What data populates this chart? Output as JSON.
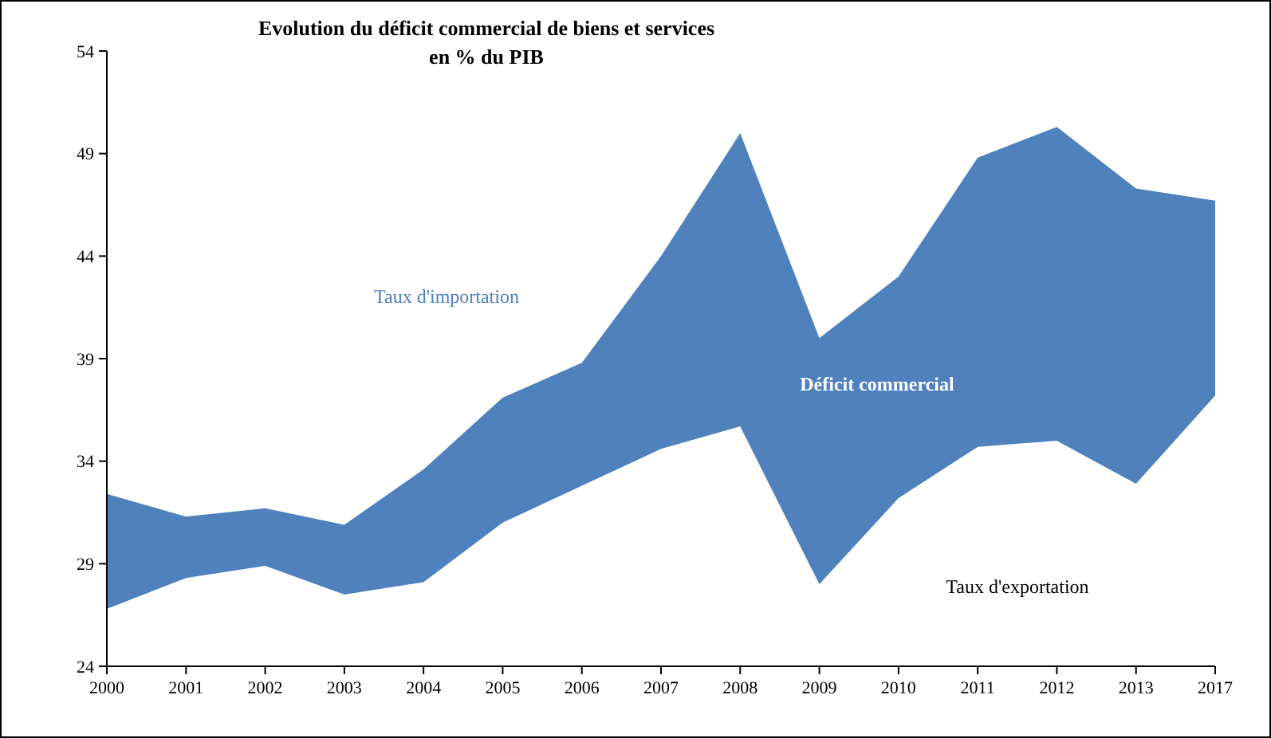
{
  "chart_data": {
    "type": "area",
    "title": "Evolution du déficit commercial de biens et services\nen % du PIB",
    "categories": [
      "2000",
      "2001",
      "2002",
      "2003",
      "2004",
      "2005",
      "2006",
      "2007",
      "2008",
      "2009",
      "2010",
      "2011",
      "2012",
      "2013",
      "2017"
    ],
    "series": [
      {
        "name": "Taux d'importation",
        "color": "#4f81bd",
        "values": [
          32.4,
          31.3,
          31.7,
          30.9,
          33.6,
          37.1,
          38.8,
          44.0,
          50.0,
          40.0,
          43.0,
          48.8,
          50.3,
          47.3,
          46.7
        ]
      },
      {
        "name": "Taux d'exportation",
        "color": "#ffffff",
        "values": [
          26.8,
          28.3,
          28.9,
          27.5,
          28.1,
          31.0,
          32.8,
          34.6,
          35.7,
          28.0,
          32.2,
          34.7,
          35.0,
          32.9,
          37.2
        ]
      }
    ],
    "annotations": [
      "Déficit commercial"
    ],
    "ylim": [
      24,
      54
    ],
    "yticks": [
      24,
      29,
      34,
      39,
      44,
      49,
      54
    ],
    "grid": false
  }
}
